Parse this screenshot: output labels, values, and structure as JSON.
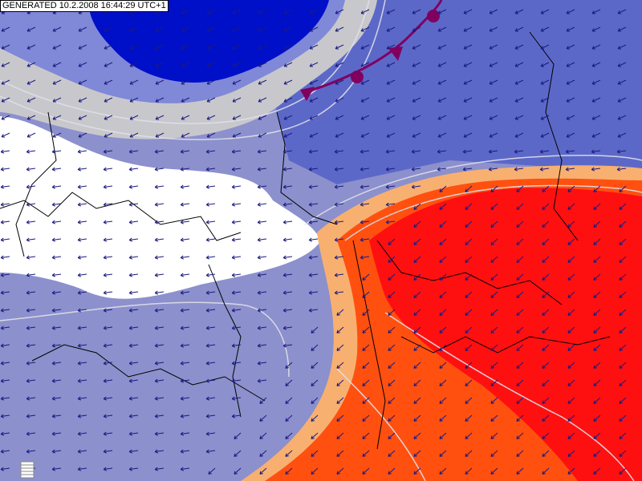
{
  "header": {
    "generated": "GENERATED 10.2.2008 16:44:29 UTC+1"
  }
}
